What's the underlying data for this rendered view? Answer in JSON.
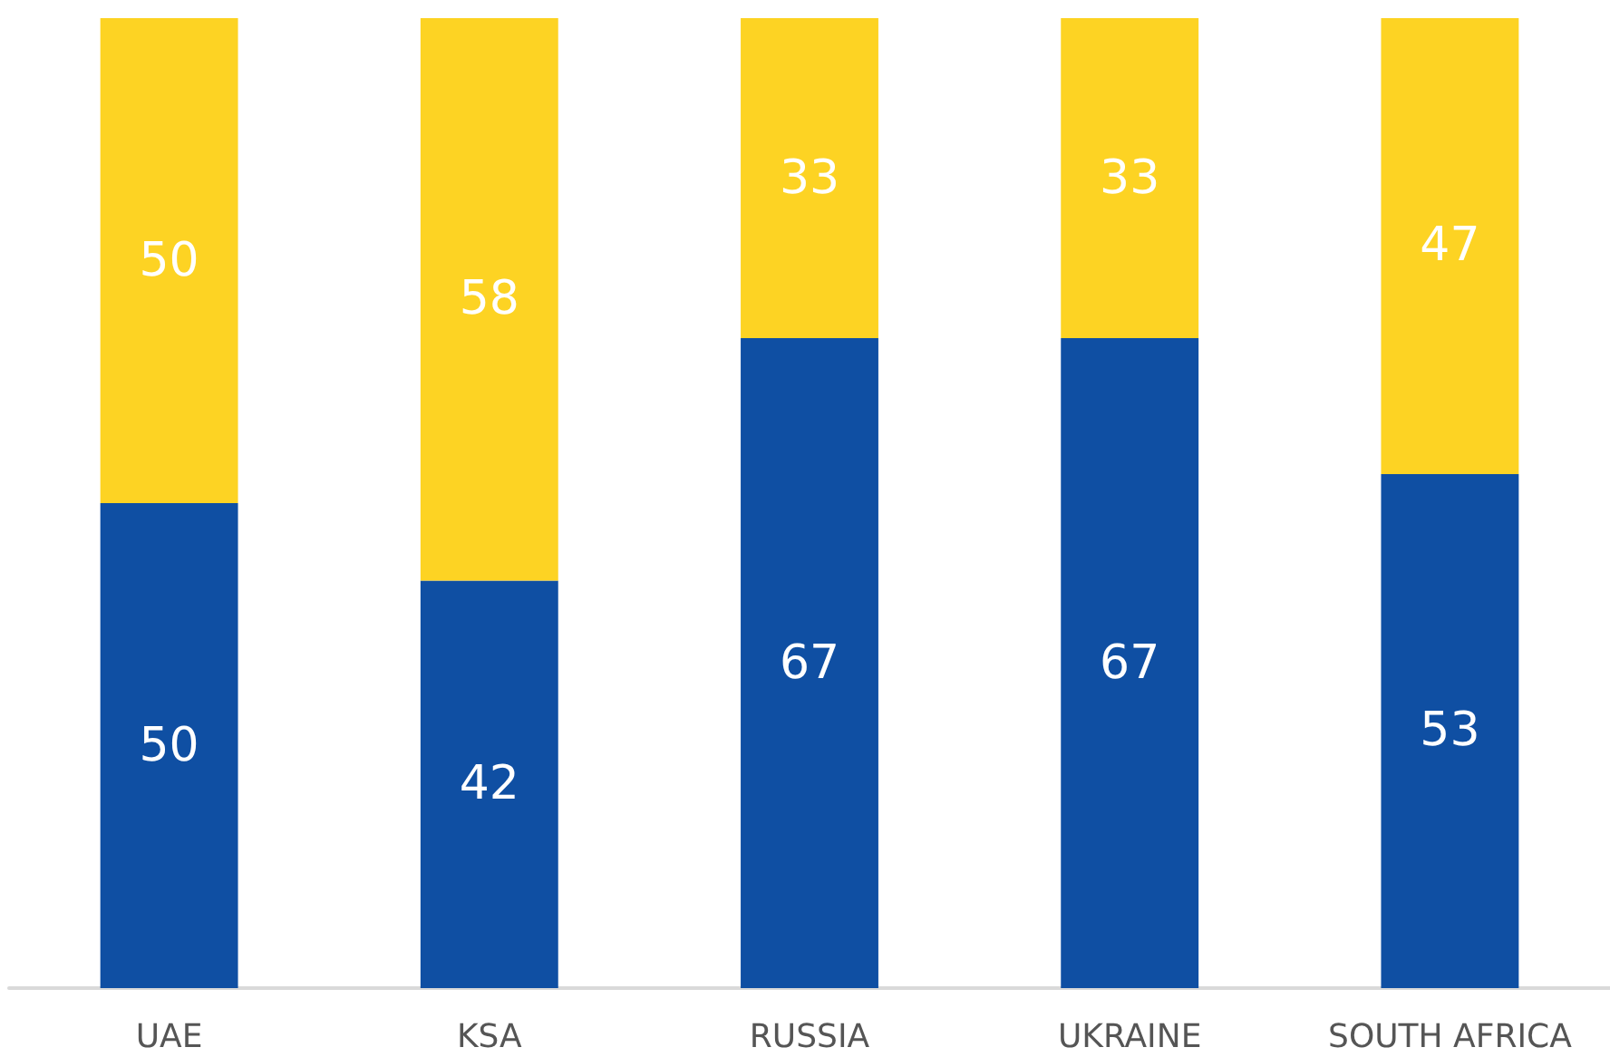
{
  "chart_data": {
    "type": "bar",
    "stacked": true,
    "data_labels": true,
    "tick_labels": "x",
    "ylim": [
      0,
      100
    ],
    "categories": [
      "UAE",
      "KSA",
      "RUSSIA",
      "UKRAINE",
      "SOUTH AFRICA"
    ],
    "series": [
      {
        "color": "#0f4fa3",
        "values": [
          50,
          42,
          67,
          67,
          53
        ]
      },
      {
        "color": "#fdd323",
        "values": [
          50,
          58,
          33,
          33,
          47
        ]
      }
    ]
  }
}
